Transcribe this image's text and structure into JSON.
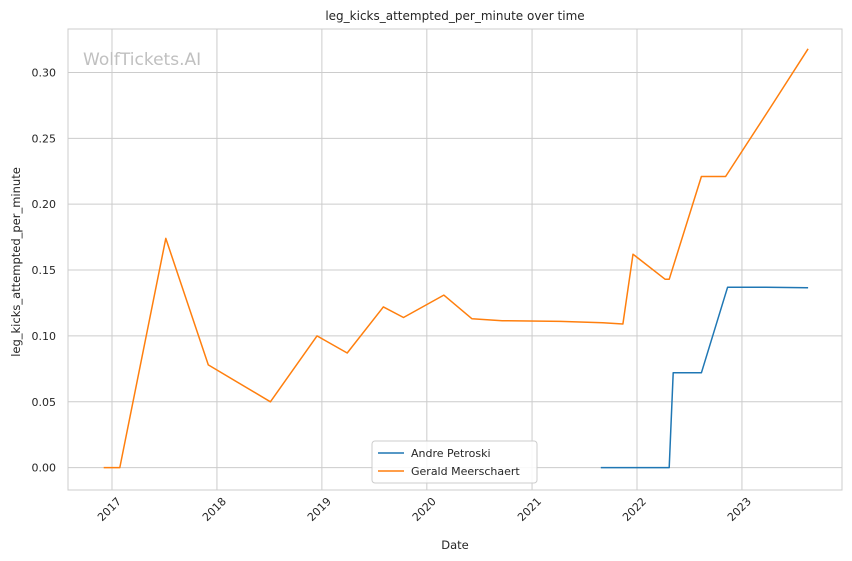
{
  "chart_data": {
    "type": "line",
    "title": "leg_kicks_attempted_per_minute over time",
    "xlabel": "Date",
    "ylabel": "leg_kicks_attempted_per_minute",
    "watermark": "WolfTickets.AI",
    "x_ticks": [
      "2017",
      "2018",
      "2019",
      "2020",
      "2021",
      "2022",
      "2023"
    ],
    "y_ticks": [
      "0.00",
      "0.05",
      "0.10",
      "0.15",
      "0.20",
      "0.25",
      "0.30"
    ],
    "xlim": [
      "2016-08-01",
      "2023-12-15"
    ],
    "ylim": [
      -0.017,
      0.333
    ],
    "grid": true,
    "legend_position": "bottom-center",
    "series": [
      {
        "name": "Andre Petroski",
        "color": "#1f77b4",
        "points": [
          [
            "2021-08-28",
            0.0
          ],
          [
            "2022-04-23",
            0.0
          ],
          [
            "2022-05-07",
            0.072
          ],
          [
            "2022-08-13",
            0.072
          ],
          [
            "2022-11-12",
            0.137
          ],
          [
            "2023-03-25",
            0.137
          ],
          [
            "2023-08-19",
            0.1365
          ]
        ]
      },
      {
        "name": "Gerald Meerschaert",
        "color": "#ff7f0e",
        "points": [
          [
            "2016-12-03",
            0.0
          ],
          [
            "2017-01-28",
            0.0
          ],
          [
            "2017-07-07",
            0.174
          ],
          [
            "2017-12-02",
            0.078
          ],
          [
            "2018-07-06",
            0.05
          ],
          [
            "2018-12-15",
            0.1
          ],
          [
            "2019-03-30",
            0.087
          ],
          [
            "2019-08-03",
            0.122
          ],
          [
            "2019-10-12",
            0.114
          ],
          [
            "2020-02-29",
            0.131
          ],
          [
            "2020-06-06",
            0.113
          ],
          [
            "2020-09-19",
            0.1115
          ],
          [
            "2021-04-10",
            0.111
          ],
          [
            "2021-09-04",
            0.11
          ],
          [
            "2021-11-13",
            0.109
          ],
          [
            "2021-12-18",
            0.162
          ],
          [
            "2022-04-09",
            0.143
          ],
          [
            "2022-04-23",
            0.143
          ],
          [
            "2022-08-13",
            0.221
          ],
          [
            "2022-11-05",
            0.221
          ],
          [
            "2023-04-15",
            0.275
          ],
          [
            "2023-08-19",
            0.318
          ]
        ]
      }
    ]
  }
}
